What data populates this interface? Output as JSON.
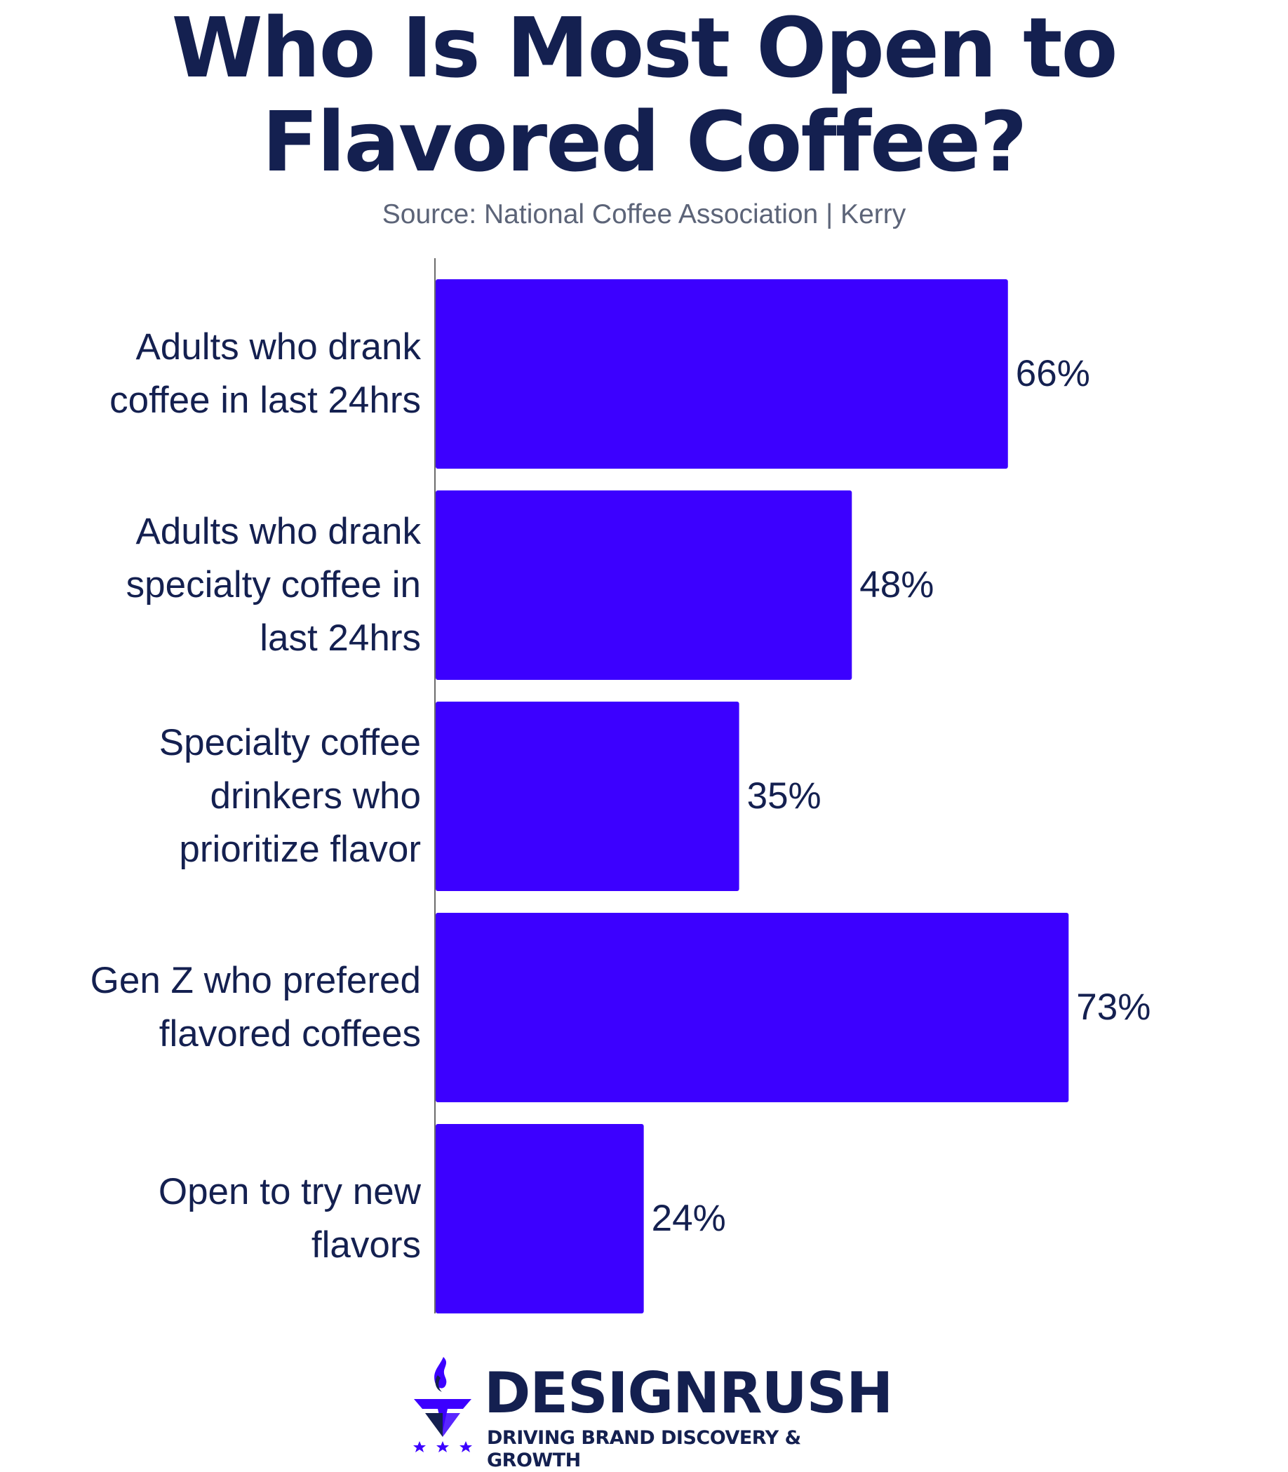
{
  "chart_data": {
    "type": "bar",
    "orientation": "horizontal",
    "title_lines": [
      "Who Is Most Open to",
      "Flavored Coffee?"
    ],
    "subtitle": "Source: National Coffee Association | Kerry",
    "categories": [
      [
        "Adults who drank",
        "coffee in last 24hrs"
      ],
      [
        "Adults who drank",
        "specialty coffee in",
        "last 24hrs"
      ],
      [
        "Specialty coffee",
        "drinkers who",
        "prioritize flavor"
      ],
      [
        "Gen Z who prefered",
        "flavored coffees"
      ],
      [
        "Open to try new",
        "flavors"
      ]
    ],
    "values": [
      66,
      48,
      35,
      73,
      24
    ],
    "value_labels": [
      "66%",
      "48%",
      "35%",
      "73%",
      "24%"
    ],
    "xlabel": "",
    "ylabel": "",
    "xlim": [
      0,
      100
    ],
    "grid": false,
    "legend": "none",
    "bar_color": "#3c00ff"
  },
  "brand": {
    "name": "DESIGNRUSH",
    "tagline": "DRIVING BRAND DISCOVERY & GROWTH",
    "color": "#142050",
    "mark_color": "#3c00ff"
  },
  "colors": {
    "text": "#142050",
    "subtitle": "#5c6478",
    "axis": "#6b6b6b"
  }
}
